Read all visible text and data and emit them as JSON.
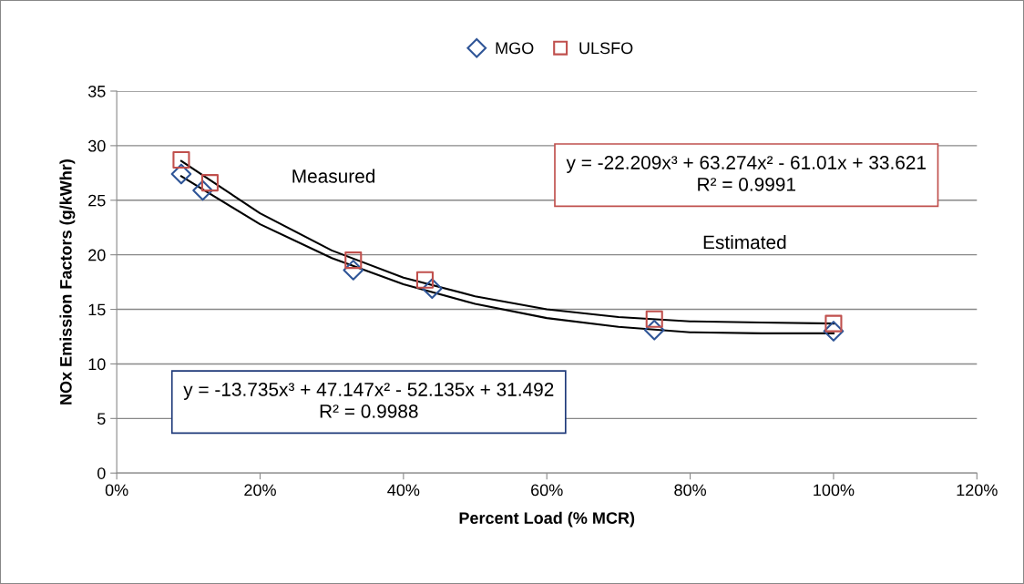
{
  "chart_data": {
    "type": "scatter",
    "xlabel": "Percent Load (% MCR)",
    "ylabel": "NOx Emission Factors (g/kWhr)",
    "xlim": [
      0,
      120
    ],
    "ylim": [
      0,
      35
    ],
    "xticks": [
      {
        "value": 0,
        "label": "0%"
      },
      {
        "value": 20,
        "label": "20%"
      },
      {
        "value": 40,
        "label": "40%"
      },
      {
        "value": 60,
        "label": "60%"
      },
      {
        "value": 80,
        "label": "80%"
      },
      {
        "value": 100,
        "label": "100%"
      },
      {
        "value": 120,
        "label": "120%"
      }
    ],
    "yticks": [
      0,
      5,
      10,
      15,
      20,
      25,
      30,
      35
    ],
    "grid": "y",
    "legend": "top",
    "series": [
      {
        "name": "MGO",
        "color": "#2f5597",
        "marker": "diamond",
        "x": [
          9,
          12,
          33,
          44,
          75,
          100
        ],
        "values": [
          27.4,
          25.9,
          18.6,
          16.9,
          13.1,
          13.0
        ]
      },
      {
        "name": "ULSFO",
        "color": "#c0504d",
        "marker": "square",
        "x": [
          9,
          13,
          33,
          43,
          75,
          100
        ],
        "values": [
          28.7,
          26.6,
          19.5,
          17.7,
          14.1,
          13.7
        ]
      },
      {
        "type": "line",
        "color": "#000000",
        "x": [
          9,
          20,
          30,
          40,
          50,
          60,
          70,
          80,
          90,
          100
        ],
        "values": [
          27.2,
          22.8,
          19.7,
          17.3,
          15.5,
          14.2,
          13.4,
          12.9,
          12.8,
          12.8
        ]
      },
      {
        "type": "line",
        "color": "#000000",
        "x": [
          9,
          20,
          30,
          40,
          50,
          60,
          70,
          80,
          90,
          100
        ],
        "values": [
          28.6,
          23.8,
          20.4,
          17.9,
          16.2,
          15.0,
          14.3,
          13.9,
          13.8,
          13.7
        ]
      }
    ],
    "annotations": [
      "y = -22.209x³ + 63.274x² - 61.01x + 33.621\nR² = 0.9991",
      "Measured",
      "Estimated",
      "y = -13.735x³ + 47.147x² - 52.135x + 31.492\nR² = 0.9988"
    ]
  }
}
